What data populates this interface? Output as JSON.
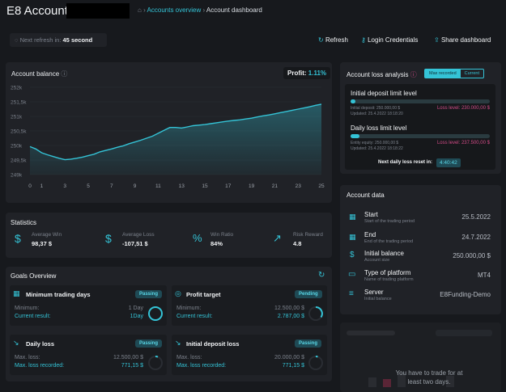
{
  "header": {
    "title": "E8 Account",
    "breadcrumb": [
      "Accounts overview",
      "Account dashboard"
    ]
  },
  "toolbar": {
    "refresh_text": "Next refresh in:",
    "refresh_value": "45 second",
    "refresh_label": "Refresh",
    "login_label": "Login Credentials",
    "share_label": "Share dashboard"
  },
  "balance": {
    "title": "Account balance",
    "profit_label": "Profit:",
    "profit_value": "1.11%"
  },
  "chart_data": {
    "type": "area",
    "x_ticks": [
      "0",
      "1",
      "3",
      "5",
      "7",
      "9",
      "11",
      "13",
      "15",
      "17",
      "19",
      "21",
      "23",
      "25"
    ],
    "y_ticks": [
      "252k",
      "251,5k",
      "251k",
      "250,5k",
      "250k",
      "249,5k",
      "249k"
    ],
    "ylim": [
      249000,
      252000
    ],
    "xlim": [
      0,
      25
    ],
    "x": [
      0,
      0.5,
      1,
      1.5,
      2,
      2.5,
      3,
      3.5,
      4,
      4.5,
      5,
      5.5,
      6,
      6.5,
      7,
      7.5,
      8,
      8.5,
      9,
      9.5,
      10,
      10.5,
      11,
      11.5,
      12,
      12.5,
      13,
      13.5,
      14,
      14.5,
      15,
      15.5,
      16,
      16.5,
      17,
      17.5,
      18,
      18.5,
      19,
      19.5,
      20,
      20.5,
      21,
      21.5,
      22,
      22.5,
      23,
      23.5,
      24,
      24.5,
      25
    ],
    "values": [
      249960,
      249880,
      249750,
      249680,
      249620,
      249560,
      249510,
      249530,
      249560,
      249600,
      249650,
      249700,
      249780,
      249830,
      249880,
      249940,
      249990,
      250060,
      250120,
      250180,
      250250,
      250320,
      250420,
      250520,
      250620,
      250620,
      250600,
      250640,
      250680,
      250700,
      250720,
      250750,
      250780,
      250810,
      250840,
      250860,
      250880,
      250910,
      250940,
      250980,
      251020,
      251050,
      251090,
      251130,
      251170,
      251210,
      251250,
      251290,
      251330,
      251380,
      251420
    ],
    "color": "#34c3d6"
  },
  "stats": {
    "title": "Statistics",
    "items": [
      {
        "label": "Average Win",
        "value": "98,37 $",
        "icon": "$"
      },
      {
        "label": "Average Loss",
        "value": "-107,51 $",
        "icon": "$"
      },
      {
        "label": "Win Ratio",
        "value": "84%",
        "icon": "%"
      },
      {
        "label": "Risk Reward",
        "value": "4.8",
        "icon": "↗"
      }
    ]
  },
  "goals": {
    "title": "Goals Overview",
    "items": [
      {
        "title": "Minimum trading days",
        "status": "Passing",
        "l1": "Minimum:",
        "v1": "1 Day",
        "l2": "Current result:",
        "v2": "1Day"
      },
      {
        "title": "Profit target",
        "status": "Pending",
        "l1": "Minimum:",
        "v1": "12.500,00 $",
        "l2": "Current result:",
        "v2": "2.787,00 $"
      },
      {
        "title": "Daily loss",
        "status": "Passing",
        "l1": "Max. loss:",
        "v1": "12.500,00 $",
        "l2": "Max. loss recorded:",
        "v2": "771,15 $"
      },
      {
        "title": "Initial deposit loss",
        "status": "Passing",
        "l1": "Max. loss:",
        "v1": "20.000,00 $",
        "l2": "Max. loss recorded:",
        "v2": "771,15 $"
      }
    ]
  },
  "loss": {
    "title": "Account loss analysis",
    "tab_max": "Max recorded",
    "tab_current": "Current",
    "initial_title": "Initial deposit limit level",
    "initial_sub1": "Initial deposit: 250.000,00 $",
    "initial_sub2": "Updated: 25.4.2022 18:18:20",
    "initial_loss": "Loss level: 230.000,00 $",
    "daily_title": "Daily loss limit level",
    "daily_sub1": "Entity equity: 250.000,00 $",
    "daily_sub2": "Updated: 25.4.2022 18:18:22",
    "daily_loss": "Loss level: 237.500,00 $",
    "reset_label": "Next daily loss reset in:",
    "reset_value": "4:40:42"
  },
  "account": {
    "title": "Account data",
    "items": [
      {
        "label": "Start",
        "sub": "Start of the trading period",
        "value": "25.5.2022",
        "icon": "▦"
      },
      {
        "label": "End",
        "sub": "End of the trading period",
        "value": "24.7.2022",
        "icon": "▦"
      },
      {
        "label": "Initial balance",
        "sub": "Account size",
        "value": "250.000,00 $",
        "icon": "$"
      },
      {
        "label": "Type of platform",
        "sub": "Name of trading platform",
        "value": "MT4",
        "icon": "▭"
      },
      {
        "label": "Server",
        "sub": "Initial balance",
        "value": "E8Funding-Demo",
        "icon": "≡"
      }
    ]
  },
  "overlay": {
    "message1": "You have to trade for at",
    "message2": "least two days."
  }
}
